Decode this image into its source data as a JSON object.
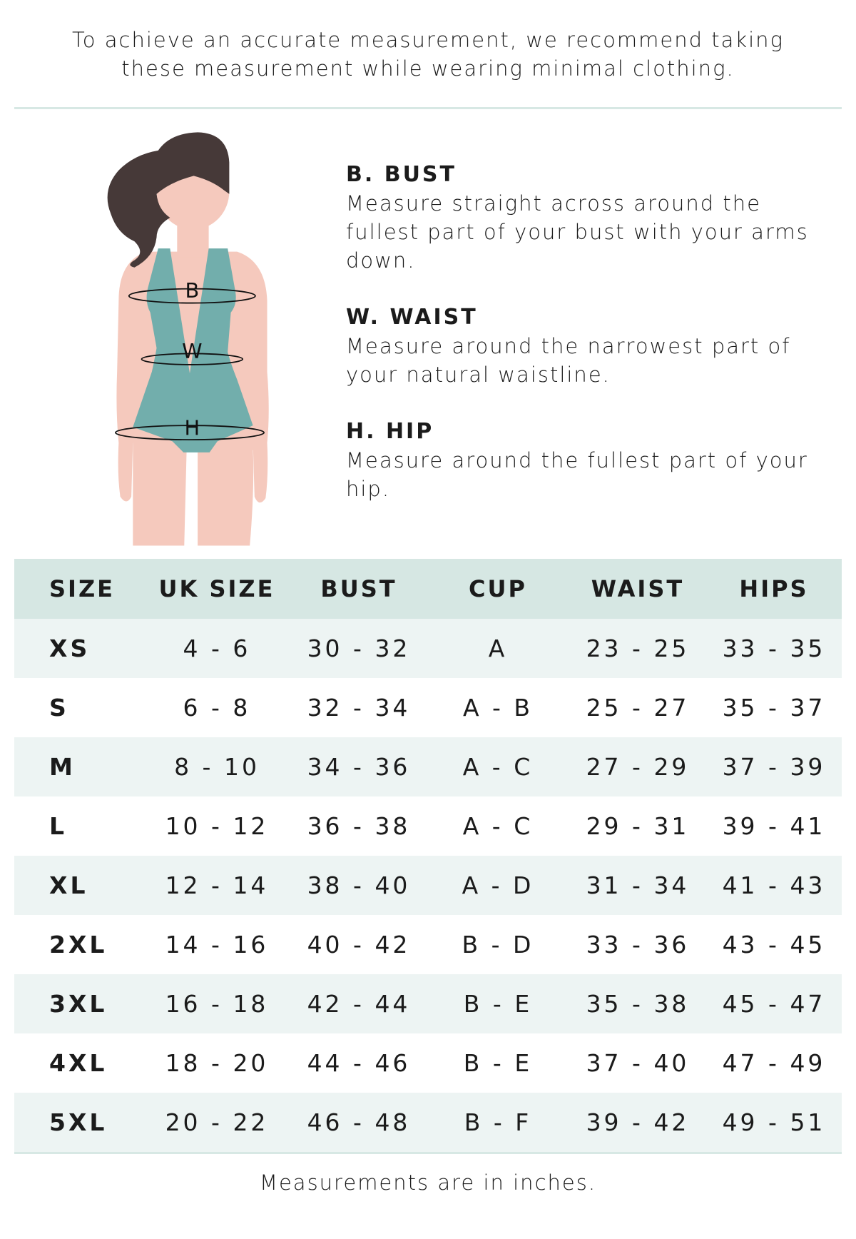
{
  "intro": {
    "line1": "To achieve an accurate measurement, we recommend taking",
    "line2": "these measurement while wearing minimal clothing."
  },
  "figure": {
    "labels": [
      "B",
      "W",
      "H"
    ],
    "colors": {
      "skin": "#f5c9bd",
      "hair": "#463938",
      "swimsuit": "#72aeac"
    }
  },
  "guide": [
    {
      "title": "B. BUST",
      "text": "Measure straight across around the fullest part of your bust with your arms down."
    },
    {
      "title": "W. WAIST",
      "text": "Measure around the narrowest part of your natural waistline."
    },
    {
      "title": "H. HIP",
      "text": "Measure around the fullest part of your hip."
    }
  ],
  "table": {
    "headers": [
      "SIZE",
      "UK SIZE",
      "BUST",
      "CUP",
      "WAIST",
      "HIPS"
    ],
    "rows": [
      [
        "XS",
        "4 - 6",
        "30 - 32",
        "A",
        "23 - 25",
        "33 - 35"
      ],
      [
        "S",
        "6 - 8",
        "32 - 34",
        "A - B",
        "25 - 27",
        "35 - 37"
      ],
      [
        "M",
        "8 - 10",
        "34 - 36",
        "A - C",
        "27 - 29",
        "37 - 39"
      ],
      [
        "L",
        "10 - 12",
        "36 - 38",
        "A - C",
        "29 - 31",
        "39 - 41"
      ],
      [
        "XL",
        "12 - 14",
        "38 - 40",
        "A - D",
        "31 - 34",
        "41 - 43"
      ],
      [
        "2XL",
        "14 - 16",
        "40 - 42",
        "B - D",
        "33 - 36",
        "43 - 45"
      ],
      [
        "3XL",
        "16 - 18",
        "42 - 44",
        "B - E",
        "35 - 38",
        "45 - 47"
      ],
      [
        "4XL",
        "18 - 20",
        "44 - 46",
        "B - E",
        "37 - 40",
        "47 - 49"
      ],
      [
        "5XL",
        "20 - 22",
        "46 - 48",
        "B - F",
        "39 - 42",
        "49 - 51"
      ]
    ]
  },
  "footer": "Measurements are in inches."
}
